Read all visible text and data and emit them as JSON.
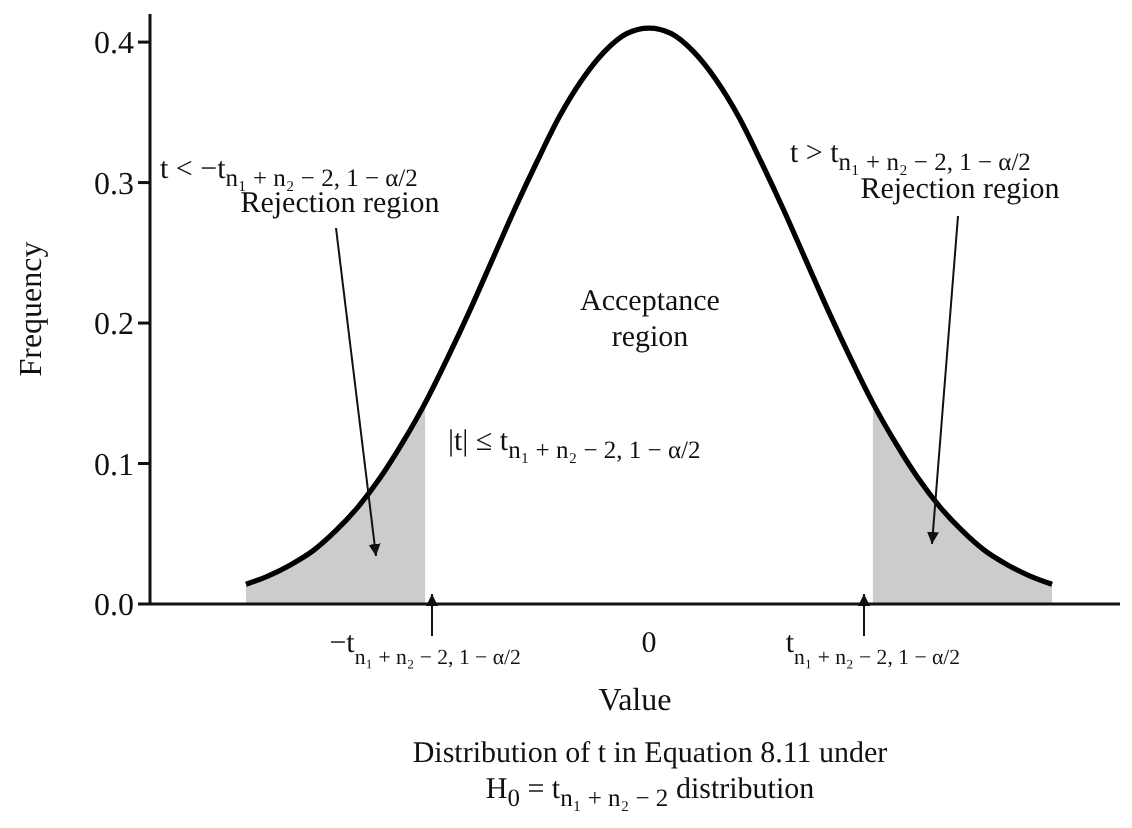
{
  "chart_data": {
    "type": "line",
    "xlabel": "Value",
    "ylabel": "Frequency",
    "categories": [
      null,
      null,
      null,
      null,
      null,
      null,
      null,
      null,
      "−t$_{n₁ + n₂ − 2, 1 − α/2}$",
      null,
      null,
      null,
      null,
      null,
      null,
      null,
      null,
      null,
      "0",
      null,
      null,
      null,
      null,
      null,
      null,
      null,
      null,
      null,
      "t$_{n₁ + n₂ − 2, 1 − α/2}$",
      null,
      null,
      null,
      null,
      null,
      null,
      null,
      null
    ],
    "series": [
      {
        "type": "area",
        "color": "#cccccc",
        "values": [
          0.014,
          0.02,
          0.028,
          0.038,
          0.052,
          0.069,
          0.09,
          0.115,
          0.143,
          null,
          null,
          null,
          null,
          null,
          null,
          null,
          null,
          null,
          null,
          null,
          null,
          null,
          null,
          null,
          null,
          null,
          null,
          null,
          0.143,
          0.115,
          0.09,
          0.069,
          0.052,
          0.038,
          0.028,
          0.02,
          0.014
        ]
      },
      {
        "color": "#000000",
        "values": [
          0.014,
          0.02,
          0.028,
          0.038,
          0.052,
          0.069,
          0.09,
          0.115,
          0.143,
          0.175,
          0.209,
          0.245,
          0.281,
          0.315,
          0.347,
          0.373,
          0.393,
          0.406,
          0.41,
          0.406,
          0.393,
          0.373,
          0.347,
          0.315,
          0.281,
          0.245,
          0.209,
          0.175,
          0.143,
          0.115,
          0.09,
          0.069,
          0.052,
          0.038,
          0.028,
          0.02,
          0.014
        ]
      }
    ],
    "ylim": [
      0,
      0.42
    ],
    "yticks": [
      {
        "value": 0,
        "label": "0.0"
      },
      0.1,
      0.2,
      0.3,
      0.4
    ],
    "grid": false,
    "legend": false,
    "marker": "none",
    "annotations": [
      "t < −t$_{n₁ + n₂ − 2, 1 − α/2}$",
      "Rejection region",
      "t > t$_{n₁ + n₂ − 2, 1 − α/2}$",
      "Rejection region",
      "Acceptance region",
      "|t| ≤ t$_{n₁ + n₂ − 2, 1 − α/2}$",
      "Distribution of t in Equation 8.11 under H$_{0}$ = t$_{n₁ + n₂ − 2}$ distribution"
    ]
  }
}
